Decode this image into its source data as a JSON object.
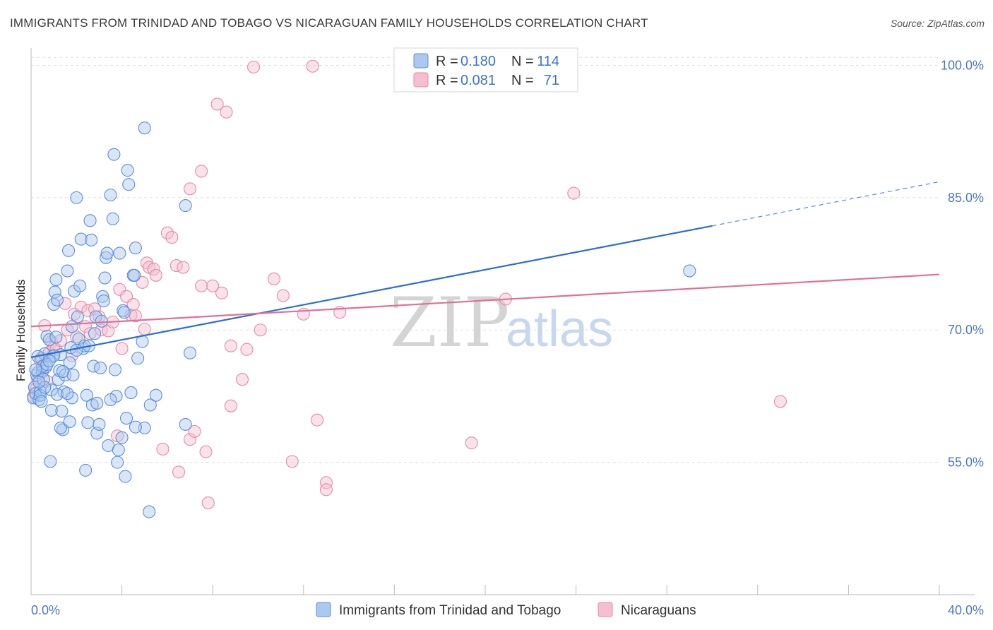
{
  "title": "IMMIGRANTS FROM TRINIDAD AND TOBAGO VS NICARAGUAN FAMILY HOUSEHOLDS CORRELATION CHART",
  "source": "Source: ZipAtlas.com",
  "watermark": {
    "zip": "ZIP",
    "atlas": "atlas"
  },
  "colors": {
    "blue_fill": "#aac8f0",
    "blue_stroke": "#5b8fd8",
    "blue_line": "#2a6fce",
    "pink_fill": "#f5bfd0",
    "pink_stroke": "#e58aa8",
    "pink_line": "#e07098",
    "grid": "#dedede",
    "axis_text": "#4a78c4"
  },
  "legend": {
    "series1": {
      "r_label": "R =",
      "r_value": "0.180",
      "n_label": "N =",
      "n_value": "114"
    },
    "series2": {
      "r_label": "R =",
      "r_value": "0.081",
      "n_label": "N =",
      "n_value": "71"
    }
  },
  "chart_data": {
    "type": "scatter",
    "title": "IMMIGRANTS FROM TRINIDAD AND TOBAGO VS NICARAGUAN FAMILY HOUSEHOLDS CORRELATION CHART",
    "xlabel": "",
    "ylabel": "Family Households",
    "xlim": [
      0,
      40
    ],
    "ylim": [
      40,
      101
    ],
    "x_tick_labels": [
      "0.0%",
      "40.0%"
    ],
    "y_ticks": [
      55,
      70,
      85,
      100
    ],
    "y_tick_labels": [
      "55.0%",
      "70.0%",
      "85.0%",
      "100.0%"
    ],
    "grid": true,
    "legend_position": "top-center",
    "series": [
      {
        "name": "Immigrants from Trinidad and Tobago",
        "color": "blue",
        "R": 0.18,
        "N": 114,
        "trend": {
          "x0": 0,
          "y0": 66.9,
          "x1": 30,
          "y1": 81.8,
          "dashed_to_x": 40,
          "dashed_to_y": 86.8
        },
        "points": [
          [
            0.1,
            62.3
          ],
          [
            0.15,
            63.5
          ],
          [
            0.2,
            62.8
          ],
          [
            0.25,
            64.9
          ],
          [
            0.3,
            65.2
          ],
          [
            0.35,
            62.1
          ],
          [
            0.4,
            63.0
          ],
          [
            0.45,
            66.8
          ],
          [
            0.5,
            65.3
          ],
          [
            0.55,
            64.4
          ],
          [
            0.6,
            67.3
          ],
          [
            0.65,
            65.8
          ],
          [
            0.7,
            69.3
          ],
          [
            0.8,
            68.9
          ],
          [
            0.85,
            55.1
          ],
          [
            0.9,
            60.9
          ],
          [
            0.95,
            67.0
          ],
          [
            1.0,
            72.9
          ],
          [
            1.05,
            74.3
          ],
          [
            1.1,
            75.7
          ],
          [
            1.15,
            73.4
          ],
          [
            1.2,
            64.4
          ],
          [
            1.25,
            65.4
          ],
          [
            1.3,
            67.2
          ],
          [
            1.35,
            60.8
          ],
          [
            1.4,
            58.7
          ],
          [
            1.45,
            63.0
          ],
          [
            1.5,
            64.9
          ],
          [
            1.6,
            76.7
          ],
          [
            1.65,
            79.0
          ],
          [
            1.7,
            66.3
          ],
          [
            1.75,
            68.0
          ],
          [
            1.8,
            62.3
          ],
          [
            1.85,
            64.9
          ],
          [
            1.9,
            74.4
          ],
          [
            2.0,
            85.0
          ],
          [
            2.05,
            71.5
          ],
          [
            2.1,
            69.0
          ],
          [
            2.15,
            75.0
          ],
          [
            2.2,
            80.3
          ],
          [
            2.3,
            67.9
          ],
          [
            2.35,
            68.2
          ],
          [
            2.4,
            54.1
          ],
          [
            2.45,
            62.6
          ],
          [
            2.5,
            59.5
          ],
          [
            2.6,
            82.4
          ],
          [
            2.65,
            80.2
          ],
          [
            2.7,
            61.5
          ],
          [
            2.75,
            65.9
          ],
          [
            2.8,
            69.6
          ],
          [
            2.85,
            71.5
          ],
          [
            2.9,
            58.3
          ],
          [
            3.0,
            59.3
          ],
          [
            3.05,
            65.7
          ],
          [
            3.1,
            71.0
          ],
          [
            3.15,
            73.8
          ],
          [
            3.2,
            73.3
          ],
          [
            3.25,
            75.9
          ],
          [
            3.3,
            78.2
          ],
          [
            3.35,
            78.7
          ],
          [
            3.4,
            56.9
          ],
          [
            3.5,
            85.3
          ],
          [
            3.6,
            82.6
          ],
          [
            3.65,
            89.9
          ],
          [
            3.7,
            65.5
          ],
          [
            3.75,
            62.5
          ],
          [
            3.8,
            55.0
          ],
          [
            3.85,
            56.4
          ],
          [
            3.9,
            78.7
          ],
          [
            4.0,
            57.8
          ],
          [
            4.05,
            72.2
          ],
          [
            4.1,
            72.0
          ],
          [
            4.15,
            53.4
          ],
          [
            4.2,
            60.0
          ],
          [
            4.25,
            88.1
          ],
          [
            4.3,
            86.5
          ],
          [
            4.4,
            62.9
          ],
          [
            4.5,
            76.2
          ],
          [
            4.55,
            76.2
          ],
          [
            4.6,
            79.3
          ],
          [
            4.7,
            66.8
          ],
          [
            4.9,
            68.7
          ],
          [
            5.0,
            92.9
          ],
          [
            5.2,
            49.4
          ],
          [
            5.25,
            61.5
          ],
          [
            5.5,
            62.6
          ],
          [
            5.0,
            58.9
          ],
          [
            6.8,
            84.1
          ],
          [
            6.8,
            59.3
          ],
          [
            7.0,
            67.4
          ],
          [
            0.3,
            67.0
          ],
          [
            0.5,
            65.9
          ],
          [
            0.9,
            63.2
          ],
          [
            1.0,
            67.1
          ],
          [
            1.15,
            62.7
          ],
          [
            1.3,
            58.9
          ],
          [
            0.4,
            62.6
          ],
          [
            0.6,
            63.5
          ],
          [
            1.6,
            62.8
          ],
          [
            1.8,
            70.4
          ],
          [
            2.0,
            67.7
          ],
          [
            2.55,
            68.2
          ],
          [
            0.2,
            65.5
          ],
          [
            0.7,
            66.1
          ],
          [
            1.1,
            69.2
          ],
          [
            0.35,
            64.1
          ],
          [
            0.45,
            61.9
          ],
          [
            1.7,
            59.6
          ],
          [
            2.9,
            61.7
          ],
          [
            3.5,
            62.1
          ],
          [
            4.6,
            59.0
          ],
          [
            29.0,
            76.7
          ],
          [
            0.8,
            66.5
          ],
          [
            1.4,
            65.3
          ]
        ]
      },
      {
        "name": "Nicaraguans",
        "color": "pink",
        "R": 0.081,
        "N": 71,
        "trend": {
          "x0": 0,
          "y0": 70.4,
          "x1": 40,
          "y1": 76.3
        },
        "points": [
          [
            0.1,
            62.5
          ],
          [
            0.2,
            63.3
          ],
          [
            0.3,
            64.5
          ],
          [
            0.4,
            66.6
          ],
          [
            0.5,
            65.6
          ],
          [
            0.6,
            70.5
          ],
          [
            0.7,
            64.2
          ],
          [
            0.8,
            67.5
          ],
          [
            0.9,
            68.7
          ],
          [
            1.0,
            68.0
          ],
          [
            1.1,
            67.8
          ],
          [
            1.3,
            68.8
          ],
          [
            1.5,
            73.0
          ],
          [
            1.6,
            70.0
          ],
          [
            1.8,
            67.1
          ],
          [
            1.9,
            71.8
          ],
          [
            2.0,
            69.2
          ],
          [
            2.2,
            72.6
          ],
          [
            2.4,
            70.4
          ],
          [
            2.5,
            72.2
          ],
          [
            2.6,
            69.6
          ],
          [
            2.8,
            72.4
          ],
          [
            3.0,
            71.5
          ],
          [
            3.1,
            70.0
          ],
          [
            3.4,
            69.9
          ],
          [
            3.6,
            70.9
          ],
          [
            3.8,
            58.0
          ],
          [
            3.9,
            74.6
          ],
          [
            4.0,
            67.9
          ],
          [
            4.2,
            73.8
          ],
          [
            4.4,
            71.7
          ],
          [
            4.5,
            72.9
          ],
          [
            4.6,
            71.6
          ],
          [
            4.9,
            75.4
          ],
          [
            5.0,
            70.1
          ],
          [
            5.1,
            77.6
          ],
          [
            5.2,
            77.1
          ],
          [
            5.4,
            76.9
          ],
          [
            5.5,
            76.2
          ],
          [
            5.8,
            56.5
          ],
          [
            6.0,
            81.0
          ],
          [
            6.2,
            80.5
          ],
          [
            6.4,
            77.3
          ],
          [
            6.5,
            53.9
          ],
          [
            6.7,
            77.1
          ],
          [
            7.0,
            57.6
          ],
          [
            7.0,
            86.0
          ],
          [
            7.2,
            58.5
          ],
          [
            7.5,
            88.0
          ],
          [
            7.5,
            75.0
          ],
          [
            7.7,
            56.2
          ],
          [
            7.8,
            50.4
          ],
          [
            8.0,
            75.0
          ],
          [
            8.2,
            95.6
          ],
          [
            8.4,
            74.2
          ],
          [
            8.6,
            94.7
          ],
          [
            8.8,
            61.4
          ],
          [
            8.8,
            68.2
          ],
          [
            9.3,
            64.4
          ],
          [
            9.5,
            67.8
          ],
          [
            9.8,
            99.8
          ],
          [
            10.1,
            70.0
          ],
          [
            10.7,
            75.8
          ],
          [
            11.1,
            73.9
          ],
          [
            11.5,
            55.1
          ],
          [
            12.0,
            71.8
          ],
          [
            12.4,
            99.9
          ],
          [
            12.6,
            59.8
          ],
          [
            13.0,
            52.7
          ],
          [
            13.0,
            51.9
          ],
          [
            13.6,
            72.0
          ],
          [
            19.4,
            57.2
          ],
          [
            20.9,
            73.5
          ],
          [
            21.0,
            99.8
          ],
          [
            23.9,
            85.5
          ],
          [
            33.0,
            61.9
          ]
        ]
      }
    ]
  },
  "bottom_legend": {
    "series1_label": "Immigrants from Trinidad and Tobago",
    "series2_label": "Nicaraguans"
  }
}
